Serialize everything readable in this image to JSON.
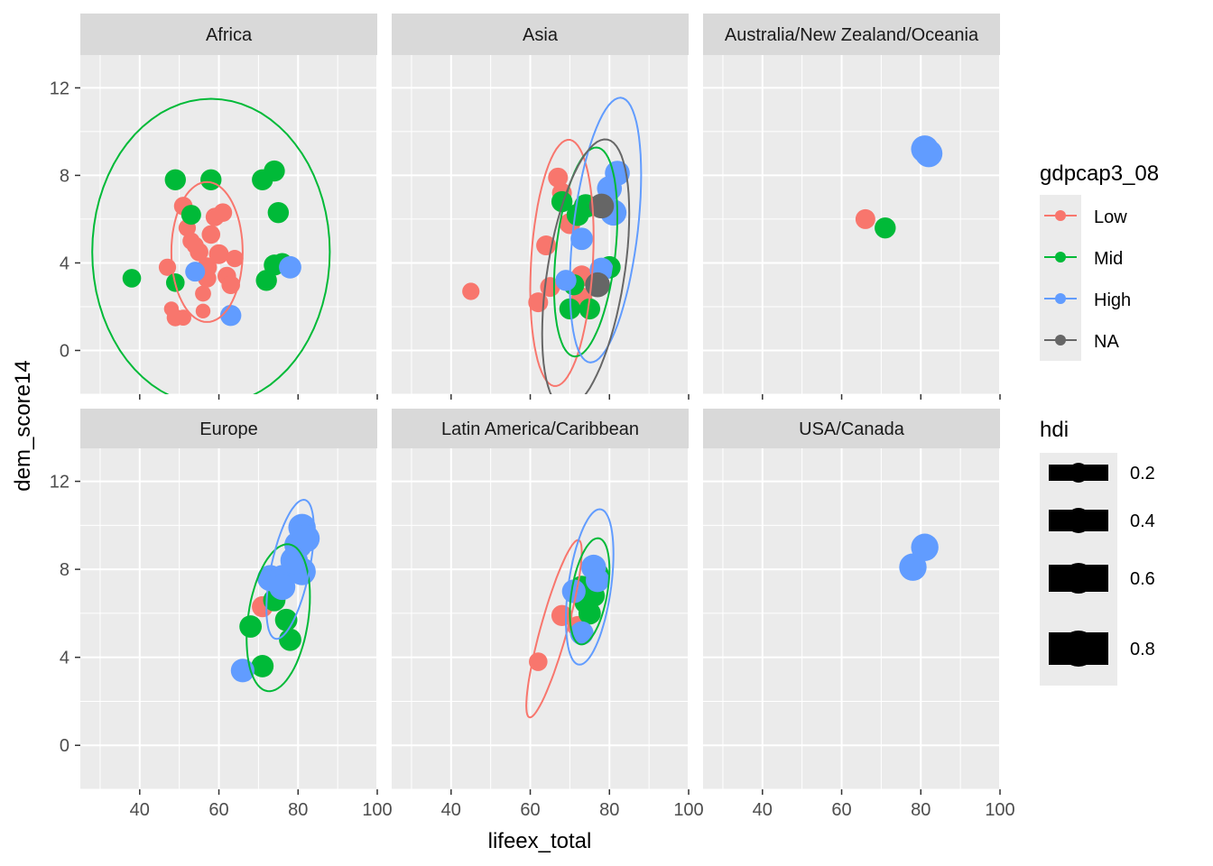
{
  "chart_data": {
    "type": "scatter",
    "facets": [
      "Africa",
      "Asia",
      "Australia/New Zealand/Oceania",
      "Europe",
      "Latin America/Caribbean",
      "USA/Canada"
    ],
    "xlabel": "lifeex_total",
    "ylabel": "dem_score14",
    "xlim": [
      25,
      100
    ],
    "ylim": [
      -2,
      13.5
    ],
    "x_ticks": [
      40,
      60,
      80,
      100
    ],
    "y_ticks": [
      0,
      4,
      8,
      12
    ],
    "x_tick_labels": [
      "40",
      "60",
      "80",
      "100"
    ],
    "y_tick_labels": [
      "0",
      "4",
      "8",
      "12"
    ],
    "grid": true,
    "legend_color": {
      "title": "gdpcap3_08",
      "entries": [
        {
          "label": "Low",
          "color": "#F8766D"
        },
        {
          "label": "Mid",
          "color": "#00BA38"
        },
        {
          "label": "High",
          "color": "#619CFF"
        },
        {
          "label": "NA",
          "color": "#666666"
        }
      ]
    },
    "legend_size": {
      "title": "hdi",
      "entries": [
        {
          "label": "0.2",
          "value": 0.2
        },
        {
          "label": "0.4",
          "value": 0.4
        },
        {
          "label": "0.6",
          "value": 0.6
        },
        {
          "label": "0.8",
          "value": 0.8
        }
      ]
    },
    "ellipses": [
      {
        "facet": 0,
        "group": "Low",
        "cx": 57,
        "cy": 4.5,
        "rx": 9,
        "ry": 3.2,
        "angle": 0
      },
      {
        "facet": 0,
        "group": "Mid",
        "cx": 58,
        "cy": 4.5,
        "rx": 30,
        "ry": 7,
        "angle": 0
      },
      {
        "facet": 1,
        "group": "Low",
        "cx": 68,
        "cy": 4.0,
        "rx": 8,
        "ry": 5.5,
        "angle": 0.15
      },
      {
        "facet": 1,
        "group": "Mid",
        "cx": 74,
        "cy": 4.5,
        "rx": 8,
        "ry": 4.5,
        "angle": 0.2
      },
      {
        "facet": 1,
        "group": "High",
        "cx": 79,
        "cy": 5.5,
        "rx": 9,
        "ry": 5.5,
        "angle": 0.28
      },
      {
        "facet": 1,
        "group": "NA",
        "cx": 74,
        "cy": 3.5,
        "rx": 11,
        "ry": 5.5,
        "angle": 0.25
      },
      {
        "facet": 3,
        "group": "Mid",
        "cx": 75,
        "cy": 5.8,
        "rx": 8,
        "ry": 3.2,
        "angle": 0.12
      },
      {
        "facet": 3,
        "group": "High",
        "cx": 78,
        "cy": 8.0,
        "rx": 6,
        "ry": 2.6,
        "angle": 0.3
      },
      {
        "facet": 4,
        "group": "Low",
        "cx": 66,
        "cy": 5.3,
        "rx": 7,
        "ry": 2.0,
        "angle": 0.5
      },
      {
        "facet": 4,
        "group": "Mid",
        "cx": 75,
        "cy": 7.0,
        "rx": 5,
        "ry": 2.2,
        "angle": 0.2
      },
      {
        "facet": 4,
        "group": "High",
        "cx": 75,
        "cy": 7.2,
        "rx": 6,
        "ry": 3.2,
        "angle": 0.25
      }
    ],
    "points": [
      {
        "facet": 0,
        "group": "Low",
        "x": 49,
        "y": 1.5,
        "hdi": 0.4
      },
      {
        "facet": 0,
        "group": "Low",
        "x": 48,
        "y": 1.9,
        "hdi": 0.3
      },
      {
        "facet": 0,
        "group": "Low",
        "x": 51,
        "y": 1.5,
        "hdi": 0.35
      },
      {
        "facet": 0,
        "group": "Low",
        "x": 56,
        "y": 1.8,
        "hdi": 0.3
      },
      {
        "facet": 0,
        "group": "Low",
        "x": 56,
        "y": 2.6,
        "hdi": 0.35
      },
      {
        "facet": 0,
        "group": "Low",
        "x": 47,
        "y": 3.8,
        "hdi": 0.4
      },
      {
        "facet": 0,
        "group": "Low",
        "x": 51,
        "y": 6.6,
        "hdi": 0.45
      },
      {
        "facet": 0,
        "group": "Low",
        "x": 52,
        "y": 5.6,
        "hdi": 0.4
      },
      {
        "facet": 0,
        "group": "Low",
        "x": 53,
        "y": 5.0,
        "hdi": 0.4
      },
      {
        "facet": 0,
        "group": "Low",
        "x": 55,
        "y": 4.5,
        "hdi": 0.45
      },
      {
        "facet": 0,
        "group": "Low",
        "x": 57,
        "y": 3.8,
        "hdi": 0.5
      },
      {
        "facet": 0,
        "group": "Low",
        "x": 59,
        "y": 6.1,
        "hdi": 0.45
      },
      {
        "facet": 0,
        "group": "Low",
        "x": 61,
        "y": 6.3,
        "hdi": 0.45
      },
      {
        "facet": 0,
        "group": "Low",
        "x": 60,
        "y": 4.4,
        "hdi": 0.5
      },
      {
        "facet": 0,
        "group": "Low",
        "x": 62,
        "y": 3.4,
        "hdi": 0.45
      },
      {
        "facet": 0,
        "group": "Low",
        "x": 64,
        "y": 4.2,
        "hdi": 0.4
      },
      {
        "facet": 0,
        "group": "Low",
        "x": 63,
        "y": 3.0,
        "hdi": 0.45
      },
      {
        "facet": 0,
        "group": "Low",
        "x": 57,
        "y": 3.3,
        "hdi": 0.45
      },
      {
        "facet": 0,
        "group": "Low",
        "x": 54,
        "y": 4.8,
        "hdi": 0.4
      },
      {
        "facet": 0,
        "group": "Low",
        "x": 58,
        "y": 5.3,
        "hdi": 0.45
      },
      {
        "facet": 0,
        "group": "Mid",
        "x": 38,
        "y": 3.3,
        "hdi": 0.45
      },
      {
        "facet": 0,
        "group": "Mid",
        "x": 49,
        "y": 7.8,
        "hdi": 0.55
      },
      {
        "facet": 0,
        "group": "Mid",
        "x": 58,
        "y": 7.8,
        "hdi": 0.55
      },
      {
        "facet": 0,
        "group": "Mid",
        "x": 71,
        "y": 7.8,
        "hdi": 0.55
      },
      {
        "facet": 0,
        "group": "Mid",
        "x": 74,
        "y": 8.2,
        "hdi": 0.55
      },
      {
        "facet": 0,
        "group": "Mid",
        "x": 75,
        "y": 6.3,
        "hdi": 0.55
      },
      {
        "facet": 0,
        "group": "Mid",
        "x": 72,
        "y": 3.2,
        "hdi": 0.55
      },
      {
        "facet": 0,
        "group": "Mid",
        "x": 74,
        "y": 3.9,
        "hdi": 0.55
      },
      {
        "facet": 0,
        "group": "Mid",
        "x": 76,
        "y": 4.0,
        "hdi": 0.5
      },
      {
        "facet": 0,
        "group": "Mid",
        "x": 49,
        "y": 3.1,
        "hdi": 0.45
      },
      {
        "facet": 0,
        "group": "Mid",
        "x": 53,
        "y": 6.2,
        "hdi": 0.5
      },
      {
        "facet": 0,
        "group": "High",
        "x": 78,
        "y": 3.8,
        "hdi": 0.6
      },
      {
        "facet": 0,
        "group": "High",
        "x": 63,
        "y": 1.6,
        "hdi": 0.55
      },
      {
        "facet": 0,
        "group": "High",
        "x": 54,
        "y": 3.6,
        "hdi": 0.5
      },
      {
        "facet": 1,
        "group": "Low",
        "x": 45,
        "y": 2.7,
        "hdi": 0.4
      },
      {
        "facet": 1,
        "group": "Low",
        "x": 67,
        "y": 7.9,
        "hdi": 0.5
      },
      {
        "facet": 1,
        "group": "Low",
        "x": 68,
        "y": 7.2,
        "hdi": 0.5
      },
      {
        "facet": 1,
        "group": "Low",
        "x": 64,
        "y": 4.8,
        "hdi": 0.5
      },
      {
        "facet": 1,
        "group": "Low",
        "x": 62,
        "y": 2.2,
        "hdi": 0.5
      },
      {
        "facet": 1,
        "group": "Low",
        "x": 65,
        "y": 2.9,
        "hdi": 0.5
      },
      {
        "facet": 1,
        "group": "Low",
        "x": 73,
        "y": 3.4,
        "hdi": 0.55
      },
      {
        "facet": 1,
        "group": "Low",
        "x": 73,
        "y": 2.4,
        "hdi": 0.55
      },
      {
        "facet": 1,
        "group": "Low",
        "x": 70,
        "y": 5.8,
        "hdi": 0.55
      },
      {
        "facet": 1,
        "group": "Mid",
        "x": 70,
        "y": 1.9,
        "hdi": 0.55
      },
      {
        "facet": 1,
        "group": "Mid",
        "x": 75,
        "y": 1.9,
        "hdi": 0.55
      },
      {
        "facet": 1,
        "group": "Mid",
        "x": 72,
        "y": 6.2,
        "hdi": 0.6
      },
      {
        "facet": 1,
        "group": "Mid",
        "x": 74,
        "y": 6.6,
        "hdi": 0.65
      },
      {
        "facet": 1,
        "group": "Mid",
        "x": 80,
        "y": 3.8,
        "hdi": 0.6
      },
      {
        "facet": 1,
        "group": "Mid",
        "x": 68,
        "y": 6.8,
        "hdi": 0.55
      },
      {
        "facet": 1,
        "group": "Mid",
        "x": 71,
        "y": 3.0,
        "hdi": 0.55
      },
      {
        "facet": 1,
        "group": "High",
        "x": 82,
        "y": 8.1,
        "hdi": 0.7
      },
      {
        "facet": 1,
        "group": "High",
        "x": 81,
        "y": 6.3,
        "hdi": 0.75
      },
      {
        "facet": 1,
        "group": "High",
        "x": 78,
        "y": 3.7,
        "hdi": 0.65
      },
      {
        "facet": 1,
        "group": "High",
        "x": 73,
        "y": 5.1,
        "hdi": 0.6
      },
      {
        "facet": 1,
        "group": "High",
        "x": 69,
        "y": 3.2,
        "hdi": 0.55
      },
      {
        "facet": 1,
        "group": "High",
        "x": 80,
        "y": 7.4,
        "hdi": 0.7
      },
      {
        "facet": 1,
        "group": "NA",
        "x": 78,
        "y": 6.6,
        "hdi": 0.7
      },
      {
        "facet": 1,
        "group": "NA",
        "x": 77,
        "y": 3.0,
        "hdi": 0.7
      },
      {
        "facet": 2,
        "group": "Low",
        "x": 66,
        "y": 6.0,
        "hdi": 0.5
      },
      {
        "facet": 2,
        "group": "Mid",
        "x": 71,
        "y": 5.6,
        "hdi": 0.55
      },
      {
        "facet": 2,
        "group": "High",
        "x": 81,
        "y": 9.2,
        "hdi": 0.8
      },
      {
        "facet": 2,
        "group": "High",
        "x": 82,
        "y": 9.0,
        "hdi": 0.8
      },
      {
        "facet": 3,
        "group": "Low",
        "x": 71,
        "y": 6.3,
        "hdi": 0.55
      },
      {
        "facet": 3,
        "group": "Mid",
        "x": 68,
        "y": 5.4,
        "hdi": 0.6
      },
      {
        "facet": 3,
        "group": "Mid",
        "x": 71,
        "y": 3.6,
        "hdi": 0.6
      },
      {
        "facet": 3,
        "group": "Mid",
        "x": 77,
        "y": 5.7,
        "hdi": 0.6
      },
      {
        "facet": 3,
        "group": "Mid",
        "x": 78,
        "y": 4.8,
        "hdi": 0.6
      },
      {
        "facet": 3,
        "group": "Mid",
        "x": 74,
        "y": 6.6,
        "hdi": 0.6
      },
      {
        "facet": 3,
        "group": "High",
        "x": 66,
        "y": 3.4,
        "hdi": 0.65
      },
      {
        "facet": 3,
        "group": "High",
        "x": 73,
        "y": 7.6,
        "hdi": 0.75
      },
      {
        "facet": 3,
        "group": "High",
        "x": 76,
        "y": 7.6,
        "hdi": 0.75
      },
      {
        "facet": 3,
        "group": "High",
        "x": 80,
        "y": 9.1,
        "hdi": 0.8
      },
      {
        "facet": 3,
        "group": "High",
        "x": 81,
        "y": 9.9,
        "hdi": 0.8
      },
      {
        "facet": 3,
        "group": "High",
        "x": 81,
        "y": 7.9,
        "hdi": 0.8
      },
      {
        "facet": 3,
        "group": "High",
        "x": 79,
        "y": 8.4,
        "hdi": 0.8
      },
      {
        "facet": 3,
        "group": "High",
        "x": 82,
        "y": 9.4,
        "hdi": 0.8
      },
      {
        "facet": 3,
        "group": "High",
        "x": 76,
        "y": 7.2,
        "hdi": 0.75
      },
      {
        "facet": 4,
        "group": "Low",
        "x": 62,
        "y": 3.8,
        "hdi": 0.45
      },
      {
        "facet": 4,
        "group": "Low",
        "x": 68,
        "y": 5.9,
        "hdi": 0.55
      },
      {
        "facet": 4,
        "group": "Low",
        "x": 72,
        "y": 5.4,
        "hdi": 0.55
      },
      {
        "facet": 4,
        "group": "Mid",
        "x": 73,
        "y": 7.2,
        "hdi": 0.6
      },
      {
        "facet": 4,
        "group": "Mid",
        "x": 74,
        "y": 6.5,
        "hdi": 0.6
      },
      {
        "facet": 4,
        "group": "Mid",
        "x": 75,
        "y": 6.0,
        "hdi": 0.6
      },
      {
        "facet": 4,
        "group": "Mid",
        "x": 77,
        "y": 7.8,
        "hdi": 0.6
      },
      {
        "facet": 4,
        "group": "Mid",
        "x": 76,
        "y": 6.8,
        "hdi": 0.6
      },
      {
        "facet": 4,
        "group": "High",
        "x": 76,
        "y": 8.1,
        "hdi": 0.7
      },
      {
        "facet": 4,
        "group": "High",
        "x": 71,
        "y": 7.0,
        "hdi": 0.65
      },
      {
        "facet": 4,
        "group": "High",
        "x": 73,
        "y": 5.1,
        "hdi": 0.65
      },
      {
        "facet": 4,
        "group": "High",
        "x": 77,
        "y": 7.5,
        "hdi": 0.65
      },
      {
        "facet": 5,
        "group": "High",
        "x": 78,
        "y": 8.1,
        "hdi": 0.8
      },
      {
        "facet": 5,
        "group": "High",
        "x": 81,
        "y": 9.0,
        "hdi": 0.8
      }
    ]
  }
}
